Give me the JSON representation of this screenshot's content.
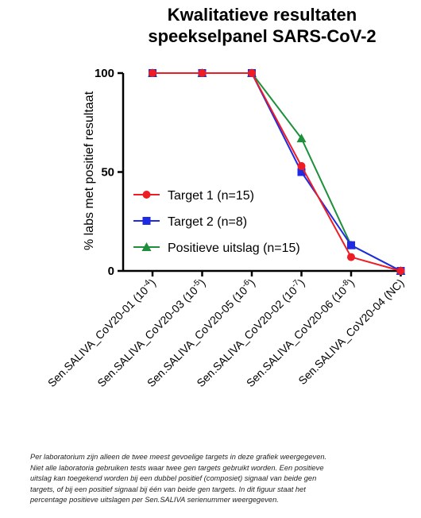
{
  "chart_data": {
    "type": "line",
    "title": [
      "Kwalitatieve resultaten",
      "speekselpanel SARS-CoV-2"
    ],
    "ylabel": "% labs met positief resultaat",
    "xlabel": "",
    "ylim": [
      0,
      100
    ],
    "yticks": [
      0,
      50,
      100
    ],
    "categories": [
      {
        "base": "Sen.SALIVA_CoV20-01 (10",
        "sup": "-4",
        "end": ")"
      },
      {
        "base": "Sen.SALIVA_CoV20-03 (10",
        "sup": "-5",
        "end": ")"
      },
      {
        "base": "Sen.SALIVA_CoV20-05 (10",
        "sup": "-6",
        "end": ")"
      },
      {
        "base": "Sen.SALIVA_CoV20-02 (10",
        "sup": "-7",
        "end": ")"
      },
      {
        "base": "Sen.SALIVA_CoV20-06 (10",
        "sup": "-8",
        "end": ")"
      },
      {
        "base": "Sen.SALIVA_CoV20-04 (NC)",
        "sup": "",
        "end": ""
      }
    ],
    "series": [
      {
        "name": "Target 1 (n=15)",
        "color": "#ee1c25",
        "marker": "circle",
        "values": [
          100,
          100,
          100,
          53,
          7,
          0
        ]
      },
      {
        "name": "Target 2 (n=8)",
        "color": "#1f2be3",
        "marker": "square",
        "values": [
          100,
          100,
          100,
          50,
          13,
          0
        ]
      },
      {
        "name": "Positieve uitslag (n=15)",
        "color": "#1e8f3a",
        "marker": "triangle",
        "values": [
          100,
          100,
          100,
          67,
          13,
          0
        ]
      }
    ],
    "legend_position": "center-left",
    "grid": false
  },
  "caption": [
    "Per laboratorium zijn alleen de twee meest gevoelige targets in deze grafiek weergegeven.",
    "Niet alle laboratoria gebruiken tests waar twee gen targets gebruikt worden. Een positieve",
    "uitslag kan toegekend worden bij een dubbel positief (composiet) signaal van beide gen",
    "targets, of bij een positief signaal bij één van beide gen targets. In dit figuur staat het",
    "percentage positieve uitslagen per Sen.SALIVA serienummer weergegeven."
  ]
}
